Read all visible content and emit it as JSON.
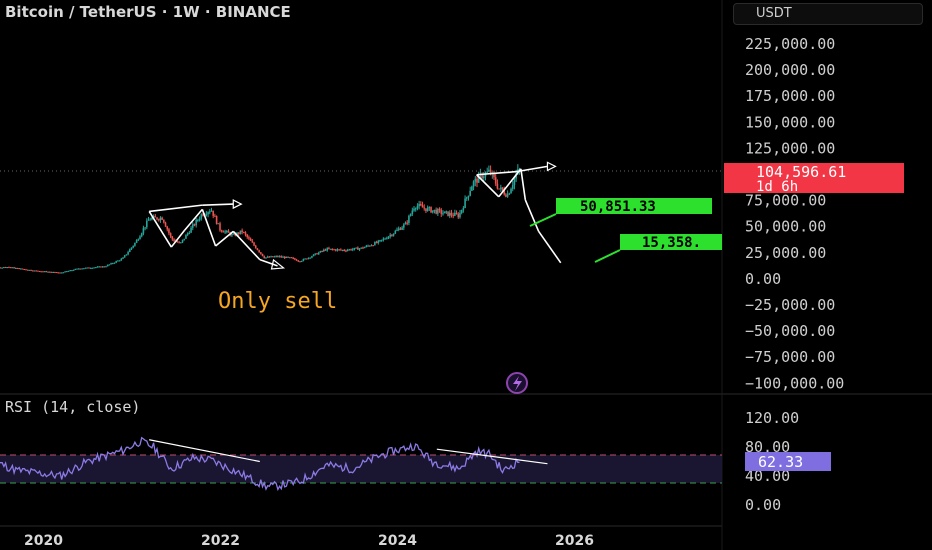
{
  "header": {
    "title": "Bitcoin / TetherUS · 1W · BINANCE",
    "currency": "USDT"
  },
  "price_badge": {
    "price": "104,596.61",
    "countdown": "1d 6h",
    "color": "#f23645"
  },
  "annotations": {
    "caption": "Only sell",
    "emoji": "😀",
    "target_1": "50,851.33",
    "target_2": "15,358.",
    "target_color": "#2ee02e",
    "caption_color": "#f5a623"
  },
  "rsi_panel": {
    "label": "RSI (14, close)",
    "current": "62.33",
    "line_color": "#8c7ae6"
  },
  "colors": {
    "up": "#26a69a",
    "down": "#ef5350",
    "background": "#000000"
  },
  "chart_data": [
    {
      "type": "candlestick",
      "title": "Bitcoin / TetherUS · 1W · BINANCE",
      "xlabel": "",
      "ylabel": "",
      "y_ticks": [
        "225,000.00",
        "200,000.00",
        "175,000.00",
        "150,000.00",
        "125,000.00",
        "100,000.00",
        "75,000.00",
        "50,000.00",
        "25,000.00",
        "0.00",
        "−25,000.00",
        "−50,000.00",
        "−75,000.00",
        "−100,000.00"
      ],
      "x_ticks": [
        "2020",
        "2022",
        "2024",
        "2026"
      ],
      "ylim": [
        -100000,
        225000
      ],
      "series": [
        {
          "values": [
            [
              2019.0,
              5000
            ],
            [
              2019.3,
              9000
            ],
            [
              2019.6,
              11000
            ],
            [
              2019.9,
              7500
            ],
            [
              2020.2,
              5500
            ],
            [
              2020.4,
              9500
            ],
            [
              2020.7,
              11500
            ],
            [
              2020.9,
              19000
            ],
            [
              2021.05,
              35000
            ],
            [
              2021.2,
              57000
            ],
            [
              2021.35,
              58000
            ],
            [
              2021.45,
              38000
            ],
            [
              2021.55,
              33000
            ],
            [
              2021.65,
              45000
            ],
            [
              2021.8,
              62000
            ],
            [
              2021.9,
              66000
            ],
            [
              2022.0,
              47000
            ],
            [
              2022.15,
              41000
            ],
            [
              2022.25,
              45000
            ],
            [
              2022.4,
              30000
            ],
            [
              2022.5,
              20000
            ],
            [
              2022.65,
              21000
            ],
            [
              2022.8,
              19500
            ],
            [
              2022.9,
              16500
            ],
            [
              2023.0,
              20000
            ],
            [
              2023.2,
              28000
            ],
            [
              2023.4,
              27000
            ],
            [
              2023.6,
              29000
            ],
            [
              2023.8,
              35000
            ],
            [
              2023.95,
              43000
            ],
            [
              2024.1,
              52000
            ],
            [
              2024.2,
              70000
            ],
            [
              2024.35,
              66000
            ],
            [
              2024.55,
              62000
            ],
            [
              2024.7,
              60000
            ],
            [
              2024.85,
              90000
            ],
            [
              2024.95,
              98000
            ],
            [
              2025.05,
              102000
            ],
            [
              2025.15,
              86000
            ],
            [
              2025.25,
              80000
            ],
            [
              2025.35,
              100000
            ],
            [
              2025.4,
              104600
            ]
          ]
        }
      ],
      "patterns": [
        {
          "name": "drawn projection",
          "values": [
            [
              2025.4,
              104600
            ],
            [
              2025.45,
              75000
            ],
            [
              2025.6,
              45000
            ],
            [
              2025.85,
              15000
            ]
          ]
        }
      ]
    },
    {
      "type": "line",
      "title": "RSI (14, close)",
      "y_ticks": [
        "120.00",
        "80.00",
        "40.00",
        "0.00"
      ],
      "ylim": [
        0,
        120
      ],
      "levels": [
        70,
        30
      ],
      "series": [
        {
          "values": [
            [
              2019.0,
              55
            ],
            [
              2019.4,
              62
            ],
            [
              2019.7,
              48
            ],
            [
              2020.2,
              40
            ],
            [
              2020.5,
              60
            ],
            [
              2020.9,
              75
            ],
            [
              2021.1,
              88
            ],
            [
              2021.25,
              80
            ],
            [
              2021.45,
              50
            ],
            [
              2021.7,
              65
            ],
            [
              2021.9,
              62
            ],
            [
              2022.2,
              45
            ],
            [
              2022.45,
              30
            ],
            [
              2022.55,
              25
            ],
            [
              2022.9,
              32
            ],
            [
              2023.2,
              55
            ],
            [
              2023.5,
              50
            ],
            [
              2023.8,
              68
            ],
            [
              2023.95,
              74
            ],
            [
              2024.2,
              82
            ],
            [
              2024.4,
              60
            ],
            [
              2024.7,
              50
            ],
            [
              2024.9,
              74
            ],
            [
              2025.05,
              70
            ],
            [
              2025.2,
              46
            ],
            [
              2025.3,
              55
            ],
            [
              2025.4,
              62.33
            ]
          ]
        }
      ]
    }
  ]
}
